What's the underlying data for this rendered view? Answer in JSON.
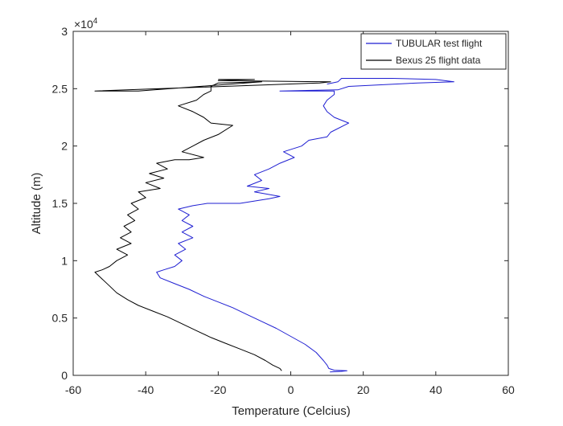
{
  "chart_data": {
    "type": "line",
    "xlabel": "Temperature (Celcius)",
    "ylabel": "Altitude (m)",
    "xlim": [
      -60,
      60
    ],
    "ylim": [
      0,
      30000
    ],
    "x_ticks": [
      -60,
      -40,
      -20,
      0,
      20,
      40,
      60
    ],
    "y_ticks": [
      0,
      5000,
      10000,
      15000,
      20000,
      25000,
      30000
    ],
    "x_tick_labels": [
      "-60",
      "-40",
      "-20",
      "0",
      "20",
      "40",
      "60"
    ],
    "y_tick_labels": [
      "0",
      "0.5",
      "1",
      "1.5",
      "2",
      "2.5",
      "3"
    ],
    "y_exponent_label": "×10",
    "y_exponent_power": "4",
    "grid": false,
    "legend_position": "top-right",
    "series": [
      {
        "name": "TUBULAR test flight",
        "color": "#1f1fd2",
        "points": [
          [
            10.8,
            300
          ],
          [
            14,
            350
          ],
          [
            15.5,
            400
          ],
          [
            12,
            450
          ],
          [
            10.5,
            600
          ],
          [
            10,
            900
          ],
          [
            9,
            1300
          ],
          [
            7,
            2000
          ],
          [
            4,
            2700
          ],
          [
            0,
            3400
          ],
          [
            -4,
            4100
          ],
          [
            -8,
            4700
          ],
          [
            -12,
            5300
          ],
          [
            -16,
            5900
          ],
          [
            -20,
            6400
          ],
          [
            -24,
            6900
          ],
          [
            -28,
            7500
          ],
          [
            -32,
            8000
          ],
          [
            -36,
            8500
          ],
          [
            -37,
            9000
          ],
          [
            -35,
            9200
          ],
          [
            -32,
            9500
          ],
          [
            -30,
            10000
          ],
          [
            -32,
            10500
          ],
          [
            -29,
            11000
          ],
          [
            -31,
            11500
          ],
          [
            -27,
            12000
          ],
          [
            -30,
            12500
          ],
          [
            -27,
            13000
          ],
          [
            -30,
            13500
          ],
          [
            -28,
            14000
          ],
          [
            -31,
            14500
          ],
          [
            -27,
            14800
          ],
          [
            -23,
            15000
          ],
          [
            -14,
            15000
          ],
          [
            -10,
            15200
          ],
          [
            -6,
            15400
          ],
          [
            -3,
            15600
          ],
          [
            -10,
            16000
          ],
          [
            -6,
            16300
          ],
          [
            -12,
            16500
          ],
          [
            -8,
            17000
          ],
          [
            -10,
            17500
          ],
          [
            -6,
            18000
          ],
          [
            -3,
            18500
          ],
          [
            1,
            19000
          ],
          [
            -2,
            19500
          ],
          [
            3,
            20000
          ],
          [
            5,
            20500
          ],
          [
            10,
            20800
          ],
          [
            11,
            21200
          ],
          [
            16,
            22000
          ],
          [
            12,
            22500
          ],
          [
            10,
            23000
          ],
          [
            9,
            23500
          ],
          [
            10,
            24000
          ],
          [
            12,
            24500
          ],
          [
            12,
            24800
          ],
          [
            -3,
            24800
          ],
          [
            13,
            24900
          ],
          [
            16,
            25200
          ],
          [
            35,
            25500
          ],
          [
            45,
            25600
          ],
          [
            40,
            25800
          ],
          [
            28,
            25900
          ],
          [
            14,
            25900
          ],
          [
            13,
            25600
          ],
          [
            10,
            25400
          ]
        ]
      },
      {
        "name": "Bexus 25 flight data",
        "color": "#000000",
        "points": [
          [
            -2.5,
            400
          ],
          [
            -3,
            600
          ],
          [
            -5,
            900
          ],
          [
            -7,
            1300
          ],
          [
            -10,
            1800
          ],
          [
            -14,
            2300
          ],
          [
            -18,
            2800
          ],
          [
            -22,
            3300
          ],
          [
            -26,
            3900
          ],
          [
            -30,
            4500
          ],
          [
            -34,
            5100
          ],
          [
            -38,
            5600
          ],
          [
            -42,
            6100
          ],
          [
            -45,
            6600
          ],
          [
            -48,
            7200
          ],
          [
            -50,
            7800
          ],
          [
            -52,
            8400
          ],
          [
            -54,
            9000
          ],
          [
            -52,
            9200
          ],
          [
            -50,
            9500
          ],
          [
            -48,
            10000
          ],
          [
            -45,
            10500
          ],
          [
            -48,
            11000
          ],
          [
            -44,
            11500
          ],
          [
            -47,
            12000
          ],
          [
            -44,
            12500
          ],
          [
            -46,
            13000
          ],
          [
            -43,
            13500
          ],
          [
            -45,
            14000
          ],
          [
            -42,
            14500
          ],
          [
            -44,
            15000
          ],
          [
            -40,
            15500
          ],
          [
            -42,
            16000
          ],
          [
            -36,
            16300
          ],
          [
            -40,
            16800
          ],
          [
            -35,
            17200
          ],
          [
            -39,
            17600
          ],
          [
            -34,
            18000
          ],
          [
            -37,
            18500
          ],
          [
            -32,
            18800
          ],
          [
            -28,
            18800
          ],
          [
            -24,
            19000
          ],
          [
            -30,
            19500
          ],
          [
            -27,
            20000
          ],
          [
            -24,
            20500
          ],
          [
            -20,
            21000
          ],
          [
            -16,
            21800
          ],
          [
            -22,
            22000
          ],
          [
            -24,
            22500
          ],
          [
            -27,
            23000
          ],
          [
            -31,
            23500
          ],
          [
            -26,
            24000
          ],
          [
            -24,
            24500
          ],
          [
            -22,
            24800
          ],
          [
            -22,
            25200
          ],
          [
            -20,
            25500
          ],
          [
            -8,
            25600
          ],
          [
            -42,
            24800
          ],
          [
            -54,
            24800
          ],
          [
            8,
            25500
          ],
          [
            11,
            25600
          ],
          [
            -20,
            25700
          ],
          [
            -10,
            25800
          ],
          [
            -20,
            25800
          ]
        ]
      }
    ]
  }
}
